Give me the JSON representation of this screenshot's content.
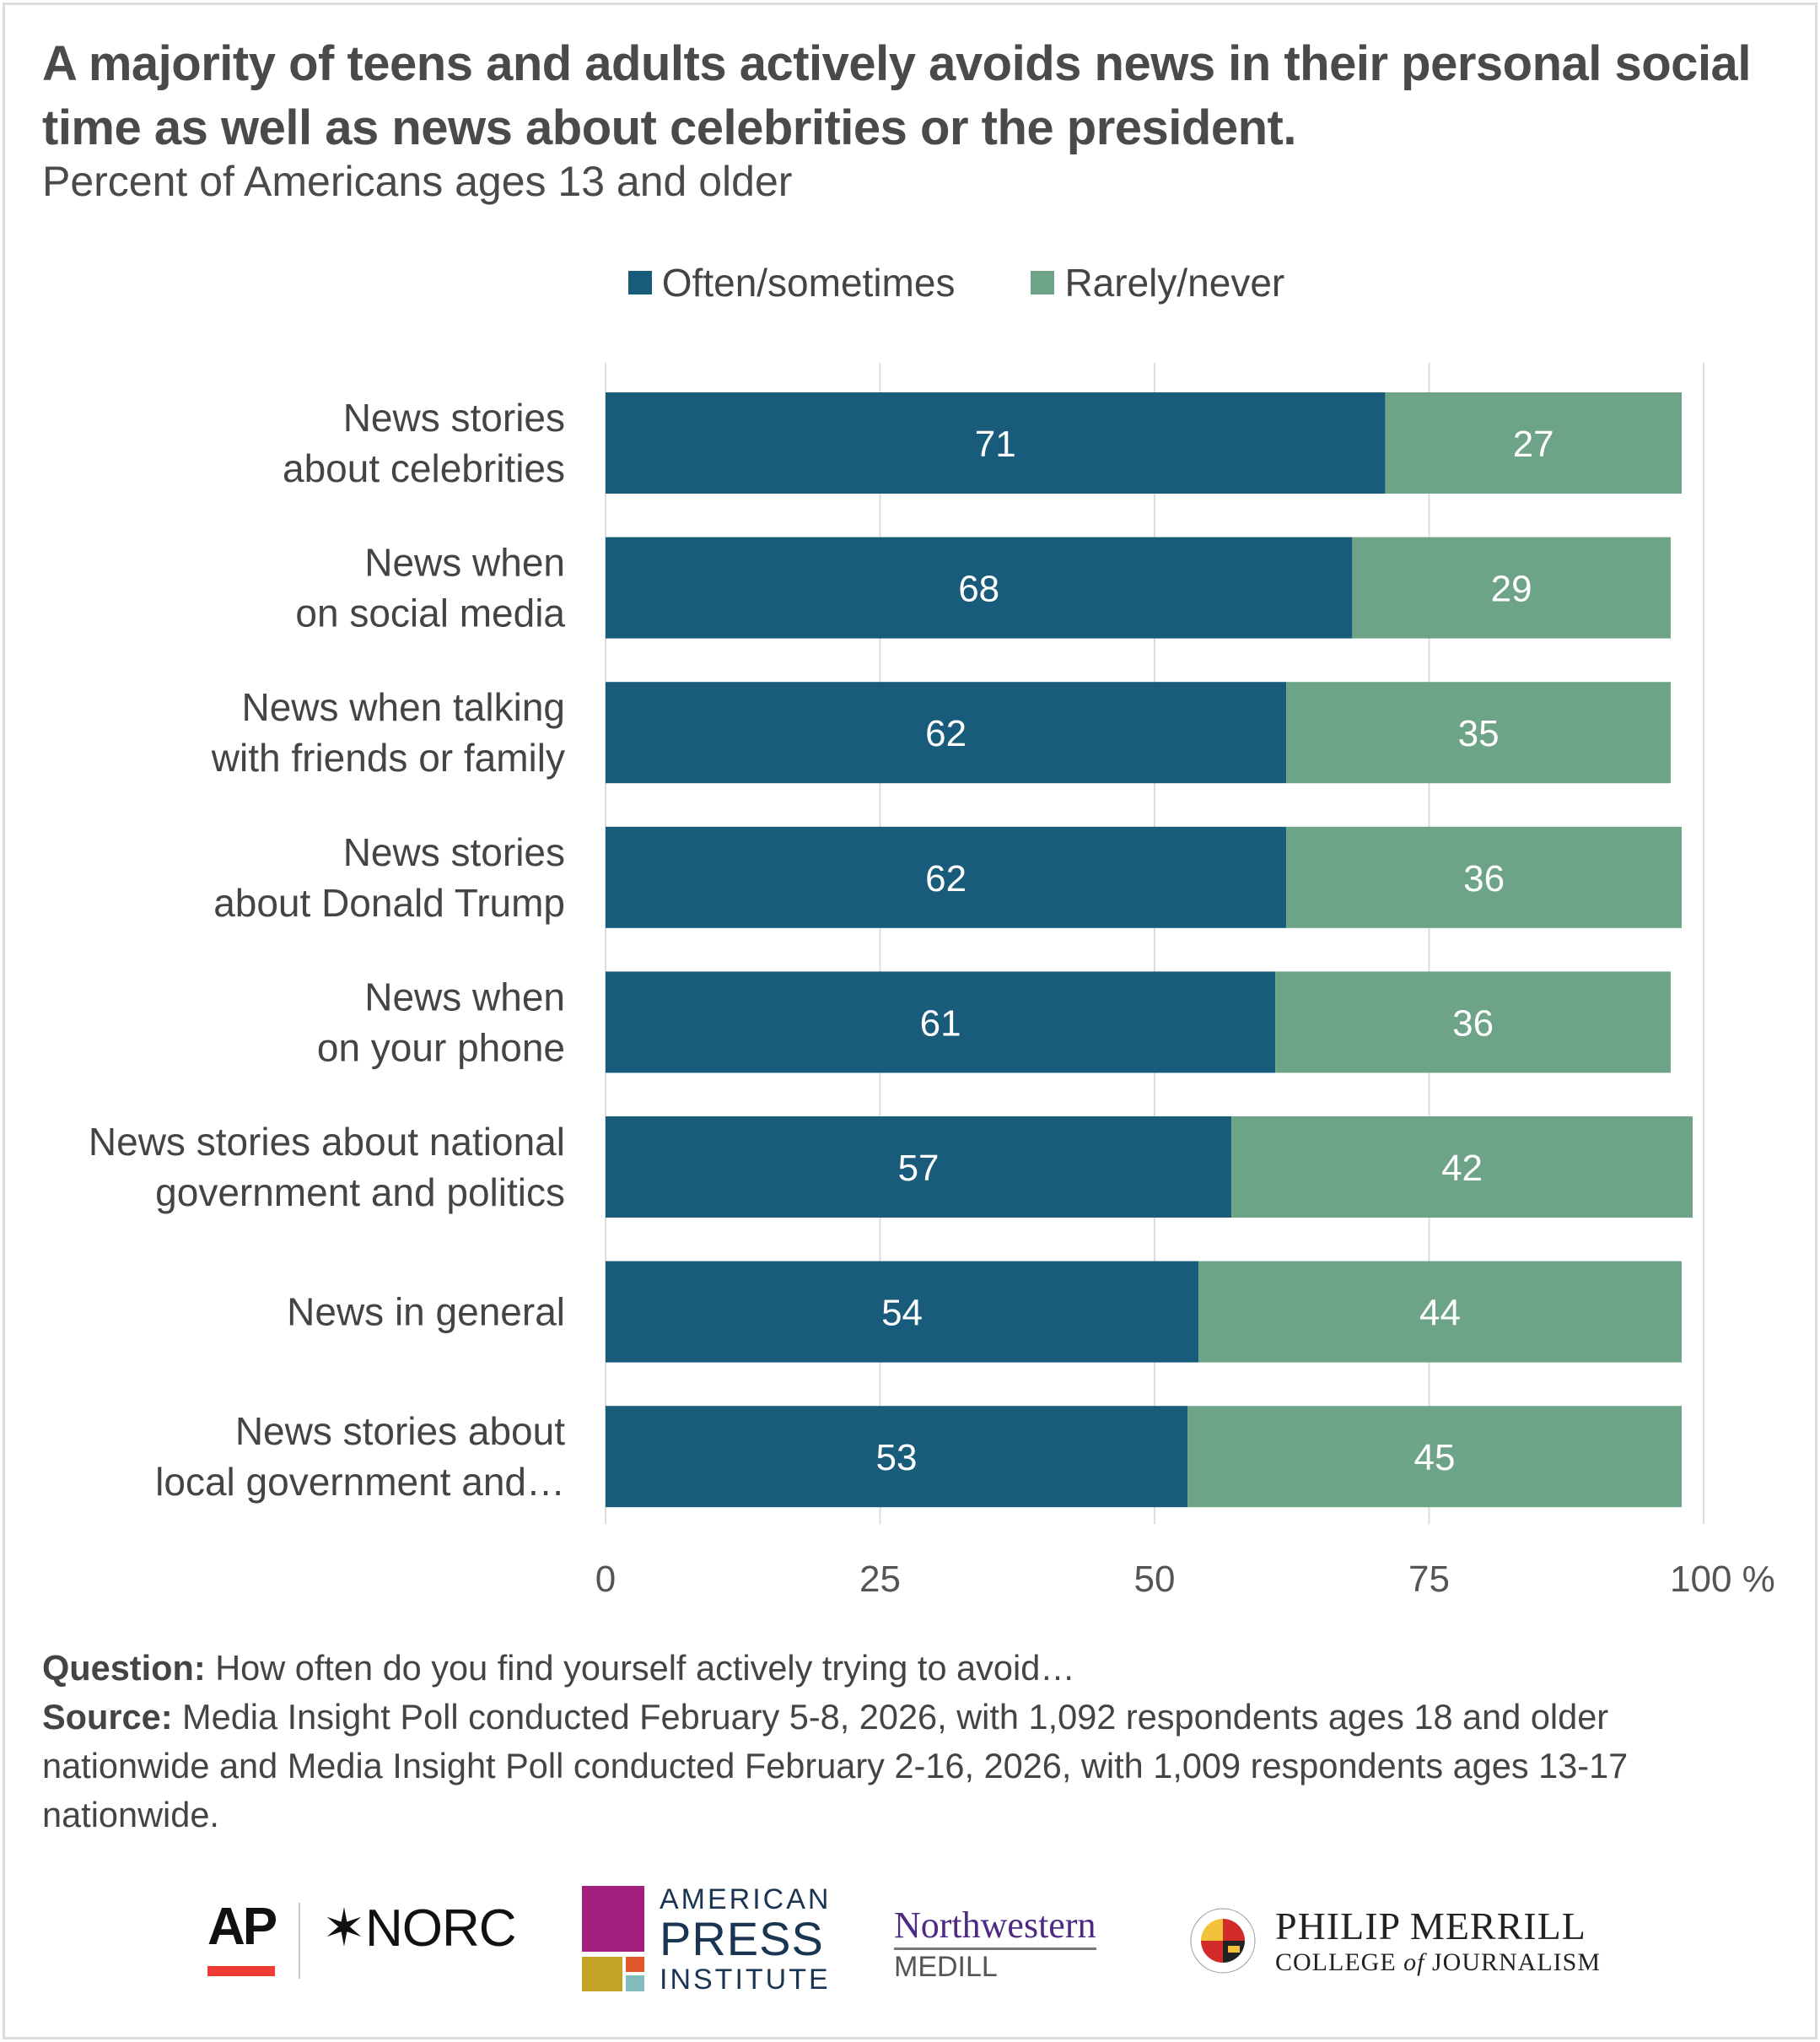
{
  "header": {
    "title": "A majority of teens and adults actively avoids news in their personal social time as well as news about celebrities or the president.",
    "subtitle": "Percent of Americans ages 13 and older"
  },
  "legend": [
    {
      "label": "Often/sometimes",
      "color": "#195b7b"
    },
    {
      "label": "Rarely/never",
      "color": "#6da386"
    }
  ],
  "chart_data": {
    "type": "bar",
    "orientation": "horizontal",
    "stacked": true,
    "title": "A majority of teens and adults actively avoids news in their personal social time as well as news about celebrities or the president.",
    "subtitle": "Percent of Americans ages 13 and older",
    "xlabel": "",
    "ylabel": "",
    "xlim": [
      0,
      100
    ],
    "x_ticks": [
      "0",
      "25",
      "50",
      "75",
      "100 %"
    ],
    "x_tick_values": [
      0,
      25,
      50,
      75,
      100
    ],
    "grid": true,
    "legend_position": "top-center",
    "categories": [
      [
        "News stories",
        "about celebrities"
      ],
      [
        "News when",
        "on social media"
      ],
      [
        "News when talking",
        "with friends or family"
      ],
      [
        "News stories",
        "about Donald Trump"
      ],
      [
        "News when",
        "on your phone"
      ],
      [
        "News stories about national",
        "government and politics"
      ],
      [
        "News in general"
      ],
      [
        "News stories about",
        "local government and…"
      ]
    ],
    "series": [
      {
        "name": "Often/sometimes",
        "color": "#195b7b",
        "values": [
          71,
          68,
          62,
          62,
          61,
          57,
          54,
          53
        ]
      },
      {
        "name": "Rarely/never",
        "color": "#6da386",
        "values": [
          27,
          29,
          35,
          36,
          36,
          42,
          44,
          45
        ]
      }
    ]
  },
  "footer": {
    "question_label": "Question:",
    "question_text": " How often do you find yourself actively trying to avoid…",
    "source_label": "Source:",
    "source_text": " Media Insight Poll conducted February 5-8, 2026, with 1,092 respondents ages 18 and older nationwide and Media Insight Poll conducted February 2-16, 2026, with 1,009 respondents ages 13-17 nationwide."
  },
  "logos": {
    "ap": "AP",
    "norc": "NORC",
    "api": {
      "line1": "AMERICAN",
      "line2": "PRESS",
      "line3": "INSTITUTE"
    },
    "northwestern": {
      "line1": "Northwestern",
      "line2": "MEDILL"
    },
    "merrill": {
      "line1": "PHILIP MERRILL",
      "line2a": "COLLEGE ",
      "line2b": "of",
      "line2c": " JOURNALISM"
    }
  }
}
